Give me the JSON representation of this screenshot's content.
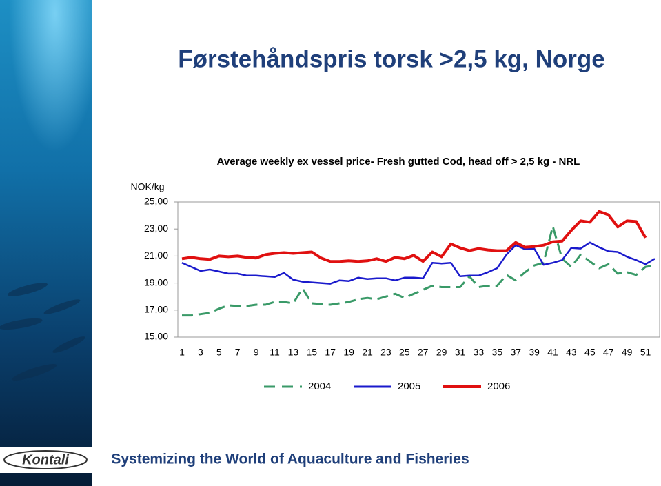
{
  "slide": {
    "title": "Førstehåndspris torsk >2,5 kg, Norge",
    "footer": "Systemizing the World of Aquaculture and Fisheries",
    "logo": "Kontali"
  },
  "chart_data": {
    "type": "line",
    "title": "Average weekly ex vessel  price- Fresh gutted Cod, head off  > 2,5 kg - NRL",
    "y_label": "NOK/kg",
    "categories": [
      "1",
      null,
      "3",
      null,
      "5",
      null,
      "7",
      null,
      "9",
      null,
      "11",
      null,
      "13",
      null,
      "15",
      null,
      "17",
      null,
      "19",
      null,
      "21",
      null,
      "23",
      null,
      "25",
      null,
      "27",
      null,
      "29",
      null,
      "31",
      null,
      "33",
      null,
      "35",
      null,
      "37",
      null,
      "39",
      null,
      "41",
      null,
      "43",
      null,
      "45",
      null,
      "47",
      null,
      "49",
      null,
      "51",
      null
    ],
    "ylim": [
      15,
      25
    ],
    "yticks": [
      {
        "value": 15,
        "label": "15,00"
      },
      {
        "value": 17,
        "label": "17,00"
      },
      {
        "value": 19,
        "label": "19,00"
      },
      {
        "value": 21,
        "label": "21,00"
      },
      {
        "value": 23,
        "label": "23,00"
      },
      {
        "value": 25,
        "label": "25,00"
      }
    ],
    "grid": false,
    "legend": "bottom",
    "series": [
      {
        "name": "2004",
        "color": "#3a9a68",
        "dashed": true,
        "values": [
          16.6,
          16.6,
          16.7,
          16.8,
          17.1,
          17.35,
          17.3,
          17.3,
          17.4,
          17.4,
          17.6,
          17.6,
          17.5,
          18.6,
          17.5,
          17.45,
          17.4,
          17.5,
          17.6,
          17.8,
          17.9,
          17.8,
          18.0,
          18.2,
          17.9,
          18.2,
          18.5,
          18.8,
          18.7,
          18.7,
          18.7,
          19.5,
          18.7,
          18.8,
          18.8,
          19.6,
          19.2,
          19.8,
          20.3,
          20.5,
          23.2,
          20.8,
          20.2,
          21.1,
          20.6,
          20.1,
          20.4,
          19.7,
          19.8,
          19.6,
          20.2,
          20.3
        ]
      },
      {
        "name": "2005",
        "color": "#1a1acc",
        "dashed": false,
        "values": [
          20.5,
          20.2,
          19.9,
          20.0,
          19.85,
          19.7,
          19.7,
          19.55,
          19.55,
          19.5,
          19.45,
          19.75,
          19.25,
          19.1,
          19.05,
          19.0,
          18.95,
          19.2,
          19.15,
          19.4,
          19.3,
          19.35,
          19.35,
          19.2,
          19.4,
          19.4,
          19.35,
          20.5,
          20.45,
          20.5,
          19.5,
          19.55,
          19.55,
          19.8,
          20.1,
          21.1,
          21.8,
          21.5,
          21.55,
          20.35,
          20.5,
          20.7,
          21.6,
          21.55,
          22.0,
          21.65,
          21.35,
          21.3,
          20.95,
          20.7,
          20.4,
          20.8
        ]
      },
      {
        "name": "2006",
        "color": "#e01010",
        "dashed": false,
        "values": [
          20.8,
          20.9,
          20.8,
          20.75,
          21.0,
          20.95,
          21.0,
          20.9,
          20.85,
          21.1,
          21.2,
          21.25,
          21.2,
          21.25,
          21.3,
          20.85,
          20.6,
          20.6,
          20.65,
          20.6,
          20.65,
          20.8,
          20.6,
          20.9,
          20.8,
          21.05,
          20.6,
          21.3,
          20.95,
          21.9,
          21.6,
          21.4,
          21.55,
          21.45,
          21.4,
          21.4,
          22.0,
          21.65,
          21.7,
          21.8,
          22.05,
          22.1,
          22.9,
          23.6,
          23.5,
          24.3,
          24.05,
          23.15,
          23.6,
          23.55,
          22.35,
          null
        ]
      }
    ]
  }
}
